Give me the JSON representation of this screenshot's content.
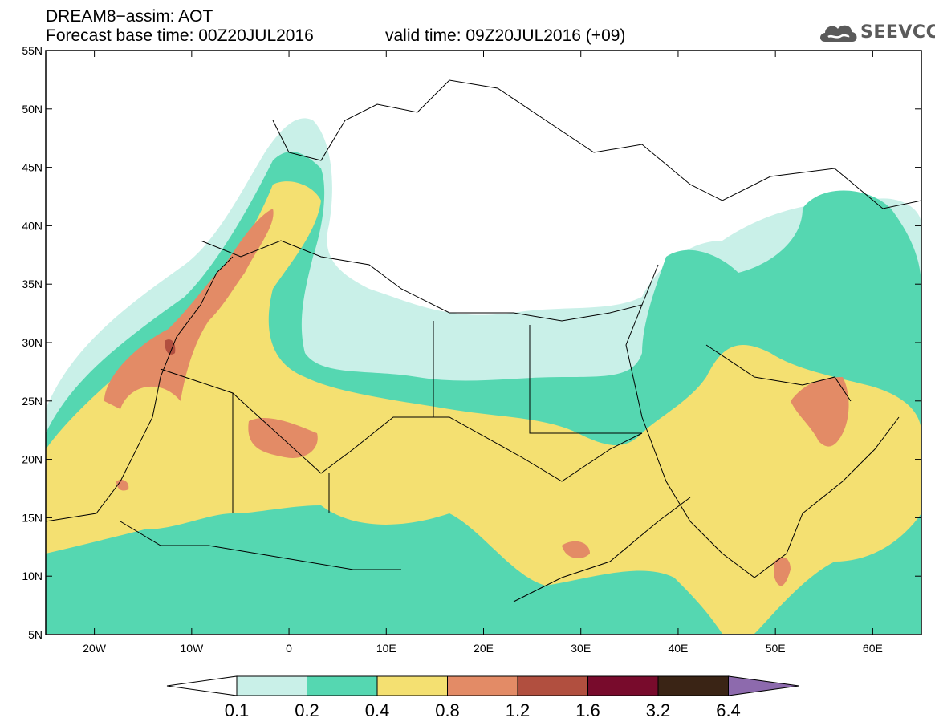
{
  "header": {
    "title_line1": "DREAM8−assim: AOT",
    "title_line2": "Forecast base time: 00Z20JUL2016",
    "valid_time": "valid time: 09Z20JUL2016 (+09)"
  },
  "logo": {
    "text": "SEEVCCC",
    "icon": "cloud-icon"
  },
  "map": {
    "lat_labels": [
      "55N",
      "50N",
      "45N",
      "40N",
      "35N",
      "30N",
      "25N",
      "20N",
      "15N",
      "10N",
      "5N"
    ],
    "lon_labels": [
      "20W",
      "10W",
      "0",
      "10E",
      "20E",
      "30E",
      "40E",
      "50E",
      "60E"
    ],
    "lat_range": [
      5,
      55
    ],
    "lon_range": [
      -25,
      65
    ],
    "variable": "AOT"
  },
  "colorbar": {
    "labels": [
      "0.1",
      "0.2",
      "0.4",
      "0.8",
      "1.2",
      "1.6",
      "3.2",
      "6.4"
    ],
    "colors": [
      "#ffffff",
      "#c9f0e8",
      "#55d7b1",
      "#f4e071",
      "#e38b66",
      "#b14f3f",
      "#780b2c",
      "#3a2415",
      "#8d6aad"
    ]
  },
  "colors": {
    "low": "#c9f0e8",
    "moderate": "#55d7b1",
    "high": "#f4e071",
    "very_high": "#e38b66",
    "extreme": "#b14f3f"
  }
}
